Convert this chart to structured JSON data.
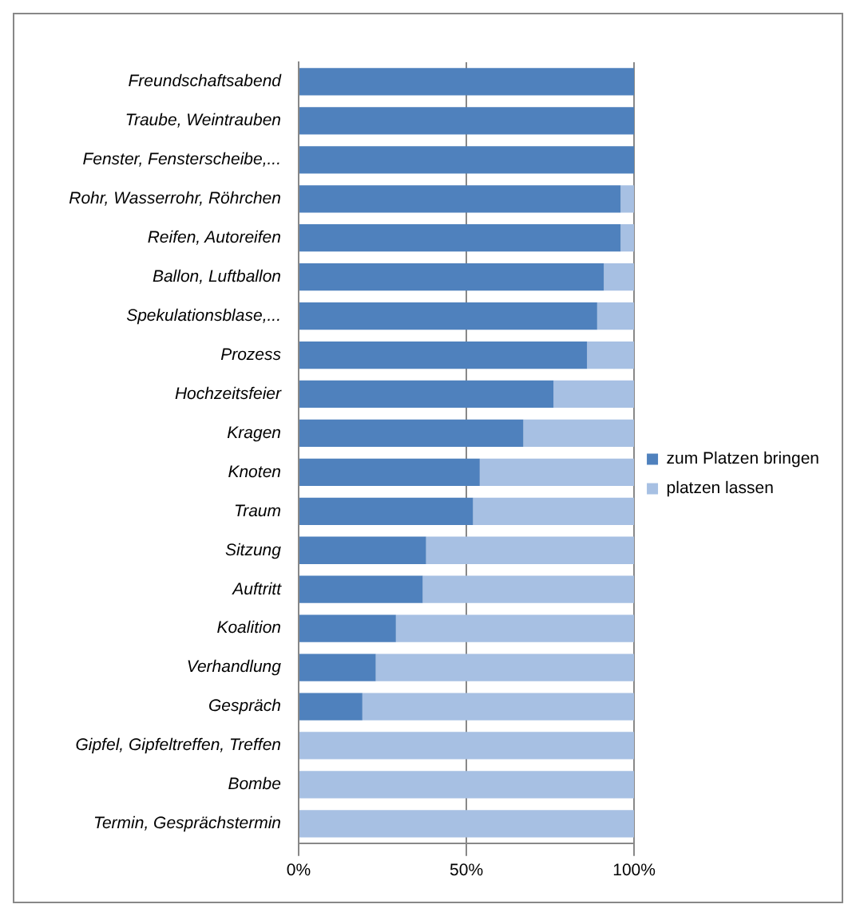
{
  "chart_data": {
    "type": "bar",
    "orientation": "horizontal",
    "stacked": true,
    "categories": [
      "Freundschaftsabend",
      "Traube, Weintrauben",
      "Fenster, Fensterscheibe,...",
      "Rohr, Wasserrohr, Röhrchen",
      "Reifen, Autoreifen",
      "Ballon, Luftballon",
      "Spekulationsblase,...",
      "Prozess",
      "Hochzeitsfeier",
      "Kragen",
      "Knoten",
      "Traum",
      "Sitzung",
      "Auftritt",
      "Koalition",
      "Verhandlung",
      "Gespräch",
      "Gipfel, Gipfeltreffen, Treffen",
      "Bombe",
      "Termin, Gesprächstermin"
    ],
    "series": [
      {
        "name": "zum Platzen bringen",
        "color": "#4f81bd",
        "values": [
          100,
          100,
          100,
          96,
          96,
          91,
          89,
          86,
          76,
          67,
          54,
          52,
          38,
          37,
          29,
          23,
          19,
          0,
          0,
          0
        ]
      },
      {
        "name": "platzen lassen",
        "color": "#a7c0e3",
        "values": [
          0,
          0,
          0,
          4,
          4,
          9,
          11,
          14,
          24,
          33,
          46,
          48,
          62,
          63,
          71,
          77,
          81,
          100,
          100,
          100
        ]
      }
    ],
    "xlim": [
      0,
      100
    ],
    "xticks": [
      {
        "value": 0,
        "label": "0%"
      },
      {
        "value": 50,
        "label": "50%"
      },
      {
        "value": 100,
        "label": "100%"
      }
    ],
    "grid": "x",
    "legend": "right"
  }
}
